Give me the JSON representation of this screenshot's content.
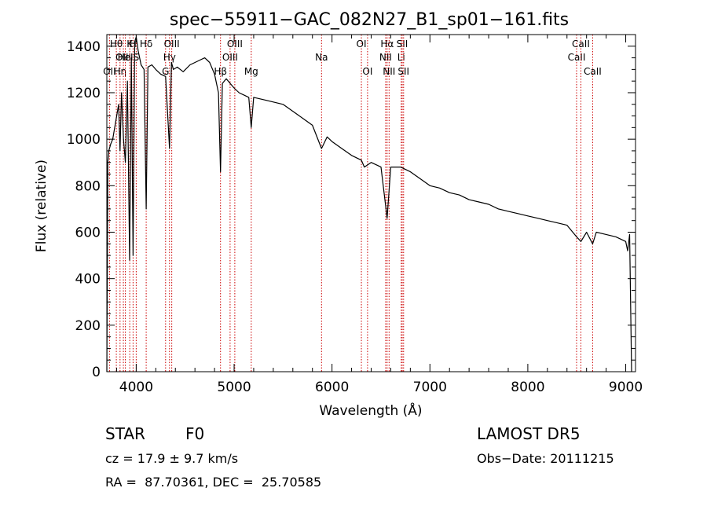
{
  "chart_data": {
    "type": "line",
    "title": "spec−55911−GAC_082N27_B1_sp01−161.fits",
    "xlabel": "Wavelength (Å)",
    "ylabel": "Flux (relative)",
    "xlim": [
      3700,
      9100
    ],
    "ylim": [
      0,
      1450
    ],
    "xticks": [
      4000,
      5000,
      6000,
      7000,
      8000,
      9000
    ],
    "yticks": [
      0,
      200,
      400,
      600,
      800,
      1000,
      1200,
      1400
    ],
    "grid": false,
    "line_color": "#000000",
    "marker_color": "#cc0000",
    "spectrum": {
      "x": [
        3700,
        3710,
        3720,
        3740,
        3760,
        3780,
        3800,
        3820,
        3835,
        3850,
        3870,
        3889,
        3910,
        3933,
        3950,
        3968,
        3985,
        4000,
        4020,
        4050,
        4080,
        4102,
        4120,
        4160,
        4200,
        4250,
        4300,
        4340,
        4360,
        4380,
        4420,
        4480,
        4550,
        4600,
        4650,
        4700,
        4750,
        4800,
        4840,
        4861,
        4880,
        4920,
        4960,
        5000,
        5050,
        5100,
        5150,
        5175,
        5200,
        5300,
        5400,
        5500,
        5600,
        5700,
        5800,
        5893,
        5950,
        6000,
        6100,
        6200,
        6300,
        6330,
        6400,
        6500,
        6563,
        6600,
        6700,
        6800,
        6900,
        7000,
        7100,
        7200,
        7300,
        7400,
        7500,
        7600,
        7700,
        7800,
        7900,
        8000,
        8100,
        8200,
        8300,
        8400,
        8498,
        8542,
        8600,
        8662,
        8700,
        8800,
        8900,
        9000,
        9020,
        9040,
        9060
      ],
      "y": [
        0,
        900,
        950,
        980,
        1000,
        1050,
        1100,
        1150,
        950,
        1200,
        1000,
        900,
        1250,
        480,
        1350,
        500,
        1420,
        1440,
        1380,
        1320,
        1300,
        700,
        1310,
        1320,
        1300,
        1280,
        1270,
        960,
        1330,
        1300,
        1310,
        1290,
        1320,
        1330,
        1340,
        1350,
        1330,
        1280,
        1200,
        860,
        1240,
        1260,
        1240,
        1220,
        1200,
        1190,
        1180,
        1050,
        1180,
        1170,
        1160,
        1150,
        1120,
        1090,
        1060,
        960,
        1010,
        990,
        960,
        930,
        910,
        880,
        900,
        880,
        660,
        880,
        880,
        860,
        830,
        800,
        790,
        770,
        760,
        740,
        730,
        720,
        700,
        690,
        680,
        670,
        660,
        650,
        640,
        630,
        580,
        560,
        600,
        550,
        600,
        590,
        580,
        560,
        520,
        590,
        0
      ]
    },
    "lines": [
      {
        "label": "OII",
        "x": 3727,
        "row": 3
      },
      {
        "label": "Hθ",
        "x": 3797,
        "row": 1
      },
      {
        "label": "Hη",
        "x": 3835,
        "row": 3
      },
      {
        "label": "OIII",
        "x": 3869,
        "row": 2
      },
      {
        "label": "HeI",
        "x": 3889,
        "row": 2
      },
      {
        "label": "K",
        "x": 3934,
        "row": 1
      },
      {
        "label": "H",
        "x": 3968,
        "row": 1
      },
      {
        "label": "S",
        "x": 4000,
        "row": 2
      },
      {
        "label": "Hδ",
        "x": 4102,
        "row": 1
      },
      {
        "label": "G",
        "x": 4300,
        "row": 3
      },
      {
        "label": "Hγ",
        "x": 4340,
        "row": 2
      },
      {
        "label": "OIII",
        "x": 4363,
        "row": 1
      },
      {
        "label": "Hβ",
        "x": 4861,
        "row": 3
      },
      {
        "label": "OIII",
        "x": 4959,
        "row": 2
      },
      {
        "label": "OIII",
        "x": 5007,
        "row": 1
      },
      {
        "label": "Mg",
        "x": 5175,
        "row": 3
      },
      {
        "label": "Na",
        "x": 5893,
        "row": 2
      },
      {
        "label": "OI",
        "x": 6300,
        "row": 1
      },
      {
        "label": "OI",
        "x": 6363,
        "row": 3
      },
      {
        "label": "NII",
        "x": 6548,
        "row": 2
      },
      {
        "label": "Hα",
        "x": 6563,
        "row": 1
      },
      {
        "label": "NII",
        "x": 6583,
        "row": 3
      },
      {
        "label": "Li",
        "x": 6707,
        "row": 2
      },
      {
        "label": "SII",
        "x": 6717,
        "row": 1
      },
      {
        "label": "SII",
        "x": 6731,
        "row": 3
      },
      {
        "label": "CaII",
        "x": 8498,
        "row": 2
      },
      {
        "label": "CaII",
        "x": 8542,
        "row": 1
      },
      {
        "label": "CaII",
        "x": 8662,
        "row": 3
      }
    ]
  },
  "footer": {
    "object_class": "STAR",
    "subclass": "F0",
    "survey": "LAMOST DR5",
    "cz": "cz = 17.9 ± 9.7 km/s",
    "obs_date": "Obs−Date: 20111215",
    "coords": "RA =  87.70361, DEC =  25.70585"
  }
}
